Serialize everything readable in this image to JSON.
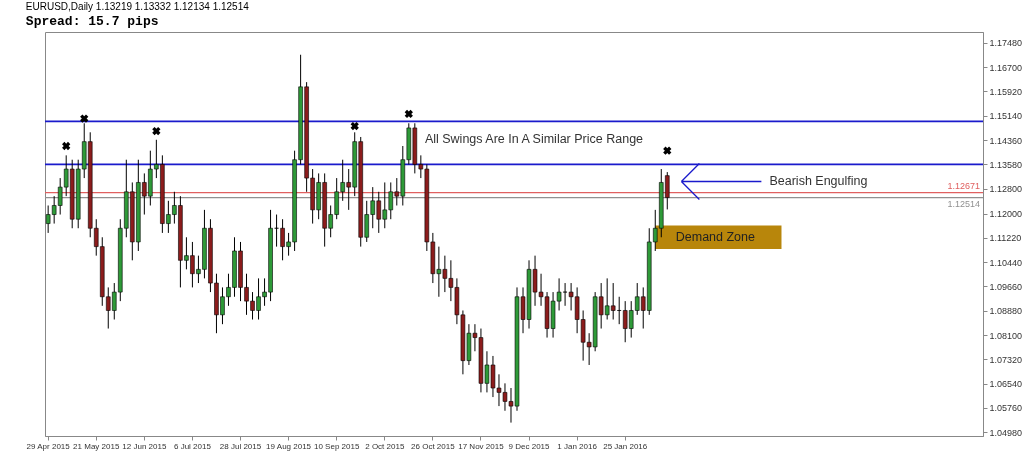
{
  "chart_data": {
    "type": "candlestick",
    "title": "EURUSD,Daily  1.13219 1.13332 1.12134 1.12514",
    "subtitle": "Spread: 15.7 pips",
    "categories": [
      "29 Apr 2015",
      null,
      null,
      null,
      null,
      null,
      null,
      null,
      "21 May 2015",
      null,
      null,
      null,
      null,
      null,
      null,
      null,
      "12 Jun 2015",
      null,
      null,
      null,
      null,
      null,
      null,
      null,
      "6 Jul 2015",
      null,
      null,
      null,
      null,
      null,
      null,
      null,
      "28 Jul 2015",
      null,
      null,
      null,
      null,
      null,
      null,
      null,
      "19 Aug 2015",
      null,
      null,
      null,
      null,
      null,
      null,
      null,
      "10 Sep 2015",
      null,
      null,
      null,
      null,
      null,
      null,
      null,
      "2 Oct 2015",
      null,
      null,
      null,
      null,
      null,
      null,
      null,
      "26 Oct 2015",
      null,
      null,
      null,
      null,
      null,
      null,
      null,
      "17 Nov 2015",
      null,
      null,
      null,
      null,
      null,
      null,
      null,
      "9 Dec 2015",
      null,
      null,
      null,
      null,
      null,
      null,
      null,
      "1 Jan 2016",
      null,
      null,
      null,
      null,
      null,
      null,
      null,
      "25 Jan 2016",
      null,
      null,
      null,
      null,
      null,
      null,
      null,
      null,
      null,
      null,
      null,
      null,
      null,
      null,
      null,
      null,
      null,
      null,
      null,
      null,
      null,
      null,
      null,
      null,
      null,
      null,
      null,
      null,
      null,
      null,
      null,
      null,
      null,
      null,
      null,
      null,
      null,
      null,
      null,
      null,
      null,
      null,
      null,
      null,
      null,
      null,
      null,
      null,
      null,
      null,
      null,
      null,
      null,
      null,
      null,
      null,
      null,
      null,
      null
    ],
    "ohlc": [
      [
        1.1168,
        1.1226,
        1.1138,
        1.1197
      ],
      [
        1.1197,
        1.1256,
        1.1168,
        1.1226
      ],
      [
        1.1226,
        1.1314,
        1.1197,
        1.1285
      ],
      [
        1.1285,
        1.1387,
        1.1256,
        1.1343
      ],
      [
        1.1343,
        1.1373,
        1.1153,
        1.1182
      ],
      [
        1.1182,
        1.1373,
        1.1153,
        1.1343
      ],
      [
        1.1343,
        1.149,
        1.1314,
        1.1431
      ],
      [
        1.1431,
        1.1461,
        1.1124,
        1.1153
      ],
      [
        1.1153,
        1.1182,
        1.1065,
        1.1094
      ],
      [
        1.1094,
        1.1124,
        1.0904,
        1.0933
      ],
      [
        1.0933,
        1.0963,
        1.0831,
        1.0889
      ],
      [
        1.0889,
        1.0977,
        1.086,
        1.0948
      ],
      [
        1.0948,
        1.1182,
        1.0919,
        1.1153
      ],
      [
        1.1153,
        1.1373,
        1.1124,
        1.127
      ],
      [
        1.127,
        1.13,
        1.105,
        1.1109
      ],
      [
        1.1109,
        1.1373,
        1.108,
        1.13
      ],
      [
        1.13,
        1.1329,
        1.1197,
        1.1256
      ],
      [
        1.1256,
        1.1402,
        1.1226,
        1.1343
      ],
      [
        1.1343,
        1.1437,
        1.1314,
        1.1358
      ],
      [
        1.1358,
        1.1387,
        1.1138,
        1.1168
      ],
      [
        1.1168,
        1.1241,
        1.1138,
        1.1197
      ],
      [
        1.1197,
        1.127,
        1.1168,
        1.1226
      ],
      [
        1.1226,
        1.1256,
        1.0963,
        1.105
      ],
      [
        1.105,
        1.1124,
        1.1021,
        1.1065
      ],
      [
        1.1065,
        1.1109,
        1.0963,
        1.1007
      ],
      [
        1.1007,
        1.1065,
        1.0977,
        1.1021
      ],
      [
        1.1021,
        1.1212,
        1.0992,
        1.1153
      ],
      [
        1.1153,
        1.1182,
        1.0948,
        1.0977
      ],
      [
        1.0977,
        1.1007,
        1.0816,
        1.0875
      ],
      [
        1.0875,
        1.0963,
        1.0845,
        1.0933
      ],
      [
        1.0933,
        1.1007,
        1.0904,
        1.0963
      ],
      [
        1.0963,
        1.1124,
        1.0933,
        1.108
      ],
      [
        1.108,
        1.1109,
        1.0919,
        1.0963
      ],
      [
        1.0963,
        1.1007,
        1.0875,
        1.0919
      ],
      [
        1.0919,
        1.0948,
        1.086,
        1.0889
      ],
      [
        1.0889,
        1.0992,
        1.086,
        1.0933
      ],
      [
        1.0933,
        1.0992,
        1.0904,
        1.0948
      ],
      [
        1.0948,
        1.1212,
        1.0919,
        1.1153
      ],
      [
        1.1153,
        1.1197,
        1.1094,
        1.1153
      ],
      [
        1.1153,
        1.1182,
        1.105,
        1.1094
      ],
      [
        1.1094,
        1.1138,
        1.1065,
        1.1109
      ],
      [
        1.1109,
        1.1402,
        1.108,
        1.1373
      ],
      [
        1.1373,
        1.171,
        1.1358,
        1.1607
      ],
      [
        1.1607,
        1.1622,
        1.127,
        1.1314
      ],
      [
        1.1314,
        1.1343,
        1.1168,
        1.1212
      ],
      [
        1.1212,
        1.1329,
        1.1182,
        1.13
      ],
      [
        1.13,
        1.1329,
        1.1094,
        1.1153
      ],
      [
        1.1153,
        1.1226,
        1.1124,
        1.1197
      ],
      [
        1.1197,
        1.1314,
        1.1182,
        1.127
      ],
      [
        1.127,
        1.1373,
        1.1241,
        1.13
      ],
      [
        1.13,
        1.1343,
        1.1212,
        1.1285
      ],
      [
        1.1285,
        1.1461,
        1.1256,
        1.1431
      ],
      [
        1.1431,
        1.1446,
        1.1094,
        1.1124
      ],
      [
        1.1124,
        1.1241,
        1.1109,
        1.1197
      ],
      [
        1.1197,
        1.1285,
        1.1153,
        1.1241
      ],
      [
        1.1241,
        1.127,
        1.1138,
        1.1182
      ],
      [
        1.1182,
        1.13,
        1.1153,
        1.1212
      ],
      [
        1.1212,
        1.13,
        1.1182,
        1.127
      ],
      [
        1.127,
        1.1314,
        1.1226,
        1.1256
      ],
      [
        1.1256,
        1.1417,
        1.1226,
        1.1373
      ],
      [
        1.1373,
        1.149,
        1.1358,
        1.1475
      ],
      [
        1.1475,
        1.149,
        1.1329,
        1.1358
      ],
      [
        1.1358,
        1.1387,
        1.1314,
        1.1343
      ],
      [
        1.1343,
        1.1358,
        1.108,
        1.1109
      ],
      [
        1.1109,
        1.1138,
        1.0977,
        1.1007
      ],
      [
        1.1007,
        1.1094,
        1.0933,
        1.1021
      ],
      [
        1.1021,
        1.1065,
        1.0948,
        1.0992
      ],
      [
        1.0992,
        1.105,
        1.0919,
        1.0963
      ],
      [
        1.0963,
        1.0992,
        1.0845,
        1.0875
      ],
      [
        1.0875,
        1.0889,
        1.0684,
        1.0728
      ],
      [
        1.0728,
        1.0845,
        1.0714,
        1.0816
      ],
      [
        1.0816,
        1.0845,
        1.0758,
        1.0802
      ],
      [
        1.0802,
        1.0831,
        1.0626,
        1.0655
      ],
      [
        1.0655,
        1.0758,
        1.0626,
        1.0714
      ],
      [
        1.0714,
        1.0743,
        1.0611,
        1.064
      ],
      [
        1.064,
        1.0684,
        1.0582,
        1.0626
      ],
      [
        1.0626,
        1.0655,
        1.0567,
        1.0597
      ],
      [
        1.0597,
        1.064,
        1.0529,
        1.0582
      ],
      [
        1.0582,
        1.0963,
        1.0567,
        1.0933
      ],
      [
        1.0933,
        1.0963,
        1.0816,
        1.086
      ],
      [
        1.086,
        1.105,
        1.0831,
        1.1021
      ],
      [
        1.1021,
        1.1065,
        1.0904,
        1.0948
      ],
      [
        1.0948,
        1.1007,
        1.0904,
        1.0933
      ],
      [
        1.0933,
        1.0948,
        1.0802,
        1.0831
      ],
      [
        1.0831,
        1.0948,
        1.0802,
        1.0919
      ],
      [
        1.0919,
        1.0992,
        1.0889,
        1.0948
      ],
      [
        1.0948,
        1.0977,
        1.0904,
        1.0948
      ],
      [
        1.0948,
        1.0977,
        1.0889,
        1.0933
      ],
      [
        1.0933,
        1.0963,
        1.0816,
        1.086
      ],
      [
        1.086,
        1.0889,
        1.0728,
        1.0787
      ],
      [
        1.0787,
        1.0816,
        1.0714,
        1.0772
      ],
      [
        1.0772,
        1.0948,
        1.0758,
        1.0933
      ],
      [
        1.0933,
        1.0977,
        1.0831,
        1.0875
      ],
      [
        1.0875,
        1.0992,
        1.086,
        1.0904
      ],
      [
        1.0904,
        1.0977,
        1.086,
        1.0889
      ],
      [
        1.0889,
        1.0933,
        1.0845,
        1.0889
      ],
      [
        1.0889,
        1.0919,
        1.0787,
        1.0831
      ],
      [
        1.0831,
        1.0919,
        1.0802,
        1.0889
      ],
      [
        1.0889,
        1.0977,
        1.0875,
        1.0933
      ],
      [
        1.0933,
        1.0963,
        1.0831,
        1.0889
      ],
      [
        1.0889,
        1.1153,
        1.0875,
        1.1109
      ],
      [
        1.1109,
        1.1212,
        1.108,
        1.1153
      ],
      [
        1.1153,
        1.1343,
        1.1124,
        1.13
      ],
      [
        1.13219,
        1.13332,
        1.12134,
        1.12514
      ],
      null,
      null,
      null,
      null,
      null,
      null,
      null,
      null,
      null,
      null,
      null,
      null,
      null,
      null,
      null,
      null,
      null,
      null,
      null,
      null,
      null,
      null,
      null,
      null,
      null,
      null,
      null,
      null,
      null,
      null,
      null,
      null,
      null,
      null,
      null,
      null,
      null,
      null,
      null,
      null,
      null,
      null,
      null,
      null,
      null,
      null,
      null,
      null,
      null,
      null,
      null,
      null
    ],
    "series": [
      {
        "type": "scatter",
        "marker": "cross",
        "color": "#000000",
        "values": [
          null,
          null,
          null,
          1.1417,
          null,
          null,
          1.1505,
          null,
          null,
          null,
          null,
          null,
          null,
          null,
          null,
          null,
          null,
          null,
          1.1465,
          null,
          null,
          null,
          null,
          null,
          null,
          null,
          null,
          null,
          null,
          null,
          null,
          null,
          null,
          null,
          null,
          null,
          null,
          null,
          null,
          null,
          null,
          null,
          null,
          null,
          null,
          null,
          null,
          null,
          null,
          null,
          null,
          1.1481,
          null,
          null,
          null,
          null,
          null,
          null,
          null,
          null,
          1.152,
          null,
          null,
          null,
          null,
          null,
          null,
          null,
          null,
          null,
          null,
          null,
          null,
          null,
          null,
          null,
          null,
          null,
          null,
          null,
          null,
          null,
          null,
          null,
          null,
          null,
          null,
          null,
          null,
          null,
          null,
          null,
          null,
          null,
          null,
          null,
          null,
          null,
          null,
          null,
          null,
          null,
          null,
          1.1402,
          null,
          null,
          null,
          null,
          null,
          null,
          null,
          null,
          null,
          null,
          null,
          null,
          null,
          null,
          null,
          null,
          null,
          null,
          null,
          null,
          null,
          null,
          null,
          null,
          null,
          null,
          null,
          null,
          null,
          null,
          null,
          null,
          null,
          null,
          null,
          null,
          null,
          null,
          null,
          null,
          null,
          null,
          null,
          null,
          null,
          null,
          null,
          null,
          null,
          null,
          null,
          null
        ]
      }
    ],
    "ylim": [
      1.0486,
      1.1783
    ],
    "yticks": [
      {
        "value": 1.0498,
        "label": "1.04980"
      },
      {
        "value": 1.0576,
        "label": "1.05760"
      },
      {
        "value": 1.0654,
        "label": "1.06540"
      },
      {
        "value": 1.0732,
        "label": "1.07320"
      },
      {
        "value": 1.081,
        "label": "1.08100"
      },
      {
        "value": 1.0888,
        "label": "1.08880"
      },
      {
        "value": 1.0966,
        "label": "1.09660"
      },
      {
        "value": 1.1044,
        "label": "1.10440"
      },
      {
        "value": 1.1122,
        "label": "1.11220"
      },
      {
        "value": 1.12,
        "label": "1.12000"
      },
      {
        "value": 1.128,
        "label": "1.12800"
      },
      {
        "value": 1.1358,
        "label": "1.13580"
      },
      {
        "value": 1.1436,
        "label": "1.14360"
      },
      {
        "value": 1.1514,
        "label": "1.15140"
      },
      {
        "value": 1.1592,
        "label": "1.15920"
      },
      {
        "value": 1.167,
        "label": "1.16700"
      },
      {
        "value": 1.1748,
        "label": "1.17480"
      }
    ],
    "ref_lines": [
      {
        "axis": "y",
        "value": 1.1496,
        "color": "#1a1acc"
      },
      {
        "axis": "y",
        "value": 1.1358,
        "color": "#1a1acc"
      },
      {
        "axis": "y",
        "value": 1.12671,
        "label": "1.12671",
        "color": "#e06060"
      },
      {
        "axis": "y",
        "value": 1.12514,
        "label": "1.12514",
        "color": "#909090"
      }
    ],
    "bands": [
      {
        "axis": "y",
        "from": 1.1086,
        "to": 1.1162,
        "label": "Demand Zone",
        "color": "#b8860b"
      }
    ],
    "annotations": [
      "All Swings Are In A Similar Price Range",
      "Bearish Engulfing"
    ]
  }
}
